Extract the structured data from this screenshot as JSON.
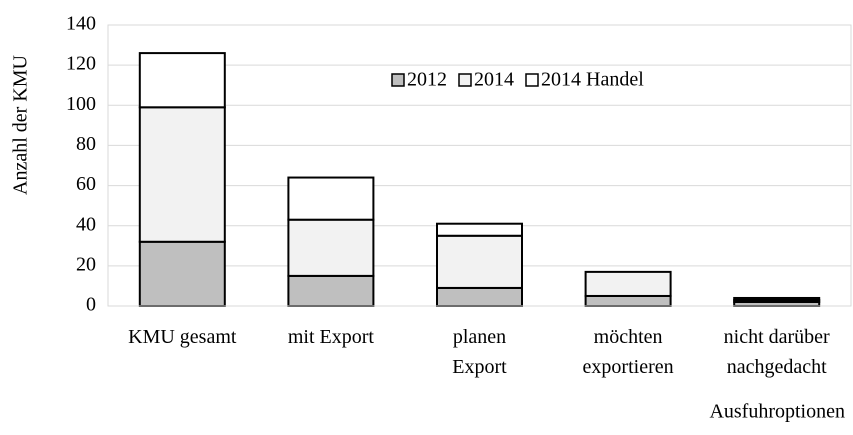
{
  "chart_data": {
    "type": "stacked_bar",
    "y_label": "Anzahl der KMU",
    "x_label": "Ausfuhroptionen",
    "categories": [
      "KMU gesamt",
      "mit Export",
      "planen\nExport",
      "möchten\nexportieren",
      "nicht darüber\nnachgedacht"
    ],
    "series": [
      {
        "name": "2012",
        "color": "#bfbfbf",
        "values": [
          32,
          15,
          9,
          5,
          2
        ]
      },
      {
        "name": "2014",
        "color": "#f2f2f2",
        "values": [
          67,
          28,
          26,
          12,
          1
        ]
      },
      {
        "name": "2014 Handel",
        "color": "#ffffff",
        "values": [
          27,
          21,
          6,
          0,
          1
        ]
      }
    ],
    "ylim": [
      0,
      140
    ],
    "yticks": [
      0,
      20,
      40,
      60,
      80,
      100,
      120,
      140
    ],
    "grid": true,
    "legend": "top"
  }
}
